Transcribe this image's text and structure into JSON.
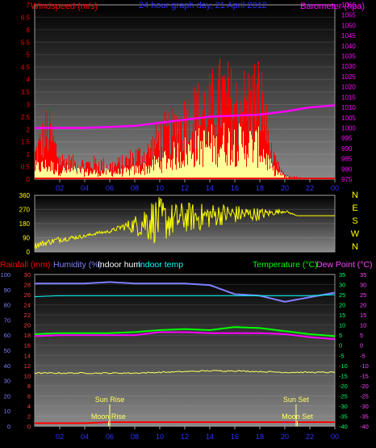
{
  "chart_data": [
    {
      "type": "bar",
      "title": "24 hour graph day, 21 April 2012",
      "left_axis": {
        "label": "Windspeed (m/s)",
        "min": 0,
        "max": 7,
        "ticks": [
          "0",
          "0.5",
          "1",
          "1.5",
          "2",
          "2.5",
          "3",
          "3.5",
          "4",
          "4.5",
          "5",
          "5.5",
          "6",
          "6.5",
          "7"
        ]
      },
      "right_axis": {
        "label": "Barometer (hpa)",
        "min": 975,
        "max": 1060,
        "ticks": [
          "975",
          "980",
          "985",
          "990",
          "995",
          "1000",
          "1005",
          "1010",
          "1015",
          "1020",
          "1025",
          "1030",
          "1035",
          "1040",
          "1045",
          "1050",
          "1055",
          "1060"
        ]
      },
      "x_ticks": [
        "02",
        "04",
        "06",
        "08",
        "10",
        "12",
        "14",
        "16",
        "18",
        "20",
        "22",
        "00"
      ],
      "series": [
        {
          "name": "Windspeed",
          "color": "#ff0000"
        },
        {
          "name": "Barometer",
          "color": "#ff00ff",
          "x": [
            0,
            2,
            4,
            6,
            8,
            10,
            12,
            14,
            16,
            18,
            20,
            22,
            24
          ],
          "values": [
            1000,
            1000,
            1000,
            1000.5,
            1001,
            1002.5,
            1004,
            1005.5,
            1006,
            1006.5,
            1008,
            1010,
            1011
          ]
        }
      ],
      "wind_envelope": {
        "x": [
          0,
          1,
          2,
          3,
          4,
          5,
          6,
          7,
          8,
          9,
          10,
          11,
          12,
          13,
          14,
          15,
          16,
          17,
          18,
          19,
          20,
          21,
          22,
          23,
          24
        ],
        "gust_max": [
          1.5,
          3.2,
          1.2,
          1.0,
          0.9,
          1.0,
          0.8,
          1.0,
          1.4,
          1.6,
          2.6,
          3.0,
          3.6,
          4.1,
          4.4,
          5.2,
          4.4,
          4.8,
          5.2,
          1.2,
          0.2,
          0.1,
          0,
          0,
          0
        ],
        "avg": [
          0.5,
          0.6,
          0.4,
          0.4,
          0.3,
          0.3,
          0.3,
          0.3,
          0.4,
          0.5,
          0.8,
          1.0,
          1.2,
          1.4,
          1.5,
          1.6,
          1.6,
          1.5,
          1.4,
          0.4,
          0.1,
          0,
          0,
          0,
          0
        ]
      }
    },
    {
      "type": "scatter",
      "title": "",
      "left_axis": {
        "min": 0,
        "max": 360,
        "ticks": [
          "0",
          "90",
          "180",
          "270",
          "360"
        ]
      },
      "right_labels": [
        "N",
        "W",
        "S",
        "E",
        "N"
      ],
      "x_ticks": [
        "02",
        "04",
        "06",
        "08",
        "10",
        "12",
        "14",
        "16",
        "18",
        "20",
        "22",
        "00"
      ],
      "series": [
        {
          "name": "Wind Direction",
          "color": "#ffff00"
        }
      ],
      "direction_envelope": {
        "x": [
          0,
          1,
          2,
          3,
          4,
          5,
          6,
          7,
          8,
          9,
          10,
          11,
          12,
          13,
          14,
          15,
          16,
          17,
          18,
          19,
          20,
          21,
          22,
          23,
          24
        ],
        "center": [
          40,
          60,
          80,
          90,
          100,
          120,
          130,
          160,
          170,
          200,
          200,
          200,
          220,
          220,
          230,
          240,
          240,
          240,
          240,
          250,
          260,
          230,
          230,
          230,
          230
        ],
        "spread": [
          20,
          20,
          20,
          15,
          10,
          10,
          10,
          20,
          60,
          140,
          150,
          110,
          100,
          90,
          80,
          70,
          60,
          50,
          40,
          20,
          10,
          0,
          0,
          0,
          0
        ]
      }
    },
    {
      "type": "line",
      "legend": [
        "Rainfall (mm)",
        "Humidity (%)",
        "Indoor hum",
        "Indoor temp",
        "Temperature (°C)",
        "Dew Point (°C)"
      ],
      "left_axis_humidity": {
        "min": 0,
        "max": 100,
        "ticks": [
          "0",
          "10",
          "20",
          "30",
          "40",
          "50",
          "60",
          "70",
          "80",
          "90",
          "100"
        ]
      },
      "left_axis_rain": {
        "min": 0,
        "max": 30,
        "ticks": [
          "0",
          "2",
          "4",
          "6",
          "8",
          "10",
          "12",
          "14",
          "16",
          "18",
          "20",
          "22",
          "24",
          "26",
          "28",
          "30"
        ]
      },
      "right_axis": {
        "min": -40,
        "max": 35,
        "ticks": [
          "35",
          "30",
          "25",
          "20",
          "15",
          "10",
          "5",
          "0",
          "-5",
          "-10",
          "-15",
          "-20",
          "-25",
          "-30",
          "-35",
          "-40"
        ]
      },
      "x_ticks": [
        "02",
        "04",
        "06",
        "08",
        "10",
        "12",
        "14",
        "16",
        "18",
        "20",
        "22",
        "00"
      ],
      "series": [
        {
          "name": "Humidity (%)",
          "color": "#8080ff",
          "x": [
            0,
            2,
            4,
            6,
            8,
            10,
            12,
            14,
            16,
            18,
            20,
            22,
            24
          ],
          "values": [
            94,
            94,
            94,
            95,
            94,
            94,
            94,
            93,
            87,
            86,
            82,
            85,
            88
          ]
        },
        {
          "name": "Indoor temp",
          "color": "#00ffff",
          "x": [
            0,
            2,
            4,
            6,
            8,
            10,
            12,
            14,
            16,
            18,
            20,
            22,
            24
          ],
          "values": [
            24,
            24.5,
            24.5,
            24.5,
            24.5,
            24.5,
            24.5,
            24.5,
            24.5,
            24.5,
            24.5,
            24.5,
            25
          ]
        },
        {
          "name": "Temperature (°C)",
          "color": "#00ff00",
          "x": [
            0,
            2,
            4,
            6,
            8,
            10,
            12,
            14,
            16,
            18,
            20,
            22,
            24
          ],
          "values": [
            5.5,
            6,
            6,
            6,
            6.5,
            7.5,
            8,
            7.5,
            9,
            8.5,
            7,
            5.5,
            4.5
          ]
        },
        {
          "name": "Dew Point (°C)",
          "color": "#ff00ff",
          "x": [
            0,
            2,
            4,
            6,
            8,
            10,
            12,
            14,
            16,
            18,
            20,
            22,
            24
          ],
          "values": [
            4.5,
            5,
            5,
            5,
            5,
            6.5,
            6.5,
            6,
            6,
            6,
            5.5,
            4,
            3
          ]
        },
        {
          "name": "Indoor hum",
          "color": "#ffff60",
          "x": [
            0,
            2,
            4,
            6,
            8,
            10,
            12,
            14,
            16,
            18,
            20,
            22,
            24
          ],
          "values": [
            35,
            35,
            35,
            35,
            35,
            35.5,
            36,
            36.5,
            36.5,
            36,
            35.5,
            35.5,
            35.5
          ]
        },
        {
          "name": "Rainfall (mm)",
          "color": "#ff0000",
          "x": [
            0,
            2,
            4,
            6,
            8,
            10,
            12,
            14,
            16,
            18,
            20,
            22,
            24
          ],
          "values": [
            0.6,
            0.6,
            0.6,
            0.8,
            0.8,
            0.8,
            0.8,
            0.8,
            0.8,
            0.8,
            0.8,
            0.8,
            0.8
          ]
        }
      ],
      "annotations": [
        {
          "text": "Sun Rise",
          "hour": 6.0
        },
        {
          "text": "Moon Rise",
          "hour": 5.9
        },
        {
          "text": "Sun Set",
          "hour": 20.9
        },
        {
          "text": "Moon Set",
          "hour": 21.0
        }
      ]
    }
  ]
}
